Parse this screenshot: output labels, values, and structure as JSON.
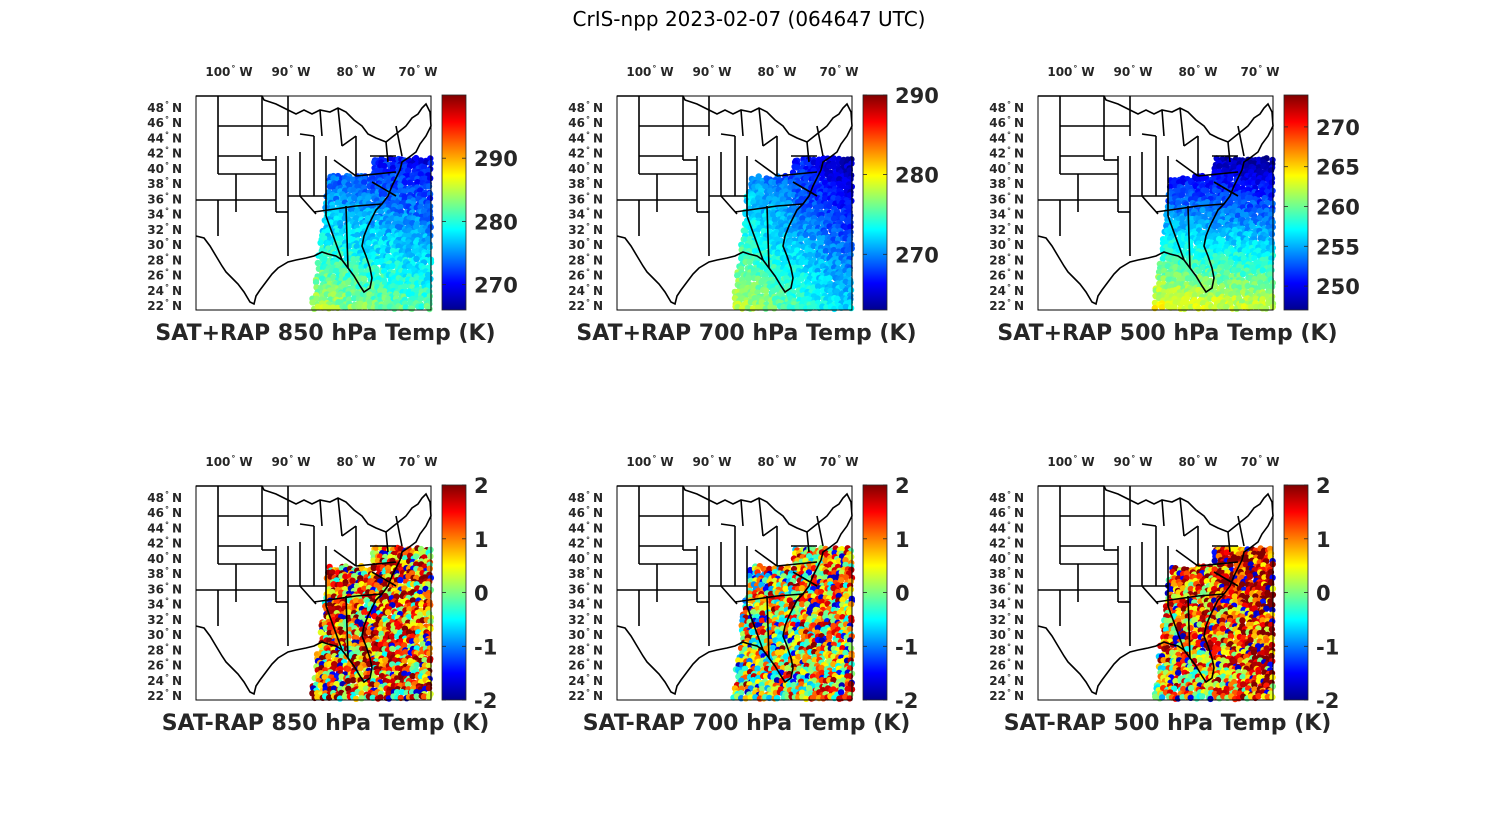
{
  "figure": {
    "title": "CrIS-npp 2023-02-07 (064647 UTC)",
    "colormap": "jet",
    "lon_labels": [
      "100",
      "90",
      "80",
      "70"
    ],
    "lon_suffix": "W",
    "lat_labels": [
      "48",
      "46",
      "44",
      "42",
      "40",
      "38",
      "36",
      "34",
      "32",
      "30",
      "28",
      "26",
      "24",
      "22"
    ],
    "lat_suffix": "N",
    "degree_symbol": "°"
  },
  "panels": [
    {
      "title": "SAT+RAP 850 hPa Temp (K)",
      "colorbar": {
        "min": 266,
        "max": 300,
        "ticks": [
          "290",
          "280",
          "270"
        ],
        "tick_values": [
          290,
          280,
          270
        ]
      },
      "field": {
        "base": 0.55,
        "north_grad": -0.35,
        "east_grad": -0.1,
        "ocean_cold": 0.0,
        "noise": 0.06
      }
    },
    {
      "title": "SAT+RAP 700 hPa Temp (K)",
      "colorbar": {
        "min": 263,
        "max": 290,
        "ticks": [
          "290",
          "280",
          "270"
        ],
        "tick_values": [
          290,
          280,
          270
        ]
      },
      "field": {
        "base": 0.58,
        "north_grad": -0.3,
        "east_grad": -0.25,
        "ocean_cold": 0.0,
        "noise": 0.05
      }
    },
    {
      "title": "SAT+RAP 500 hPa Temp (K)",
      "colorbar": {
        "min": 247,
        "max": 274,
        "ticks": [
          "270",
          "265",
          "260",
          "255",
          "250"
        ],
        "tick_values": [
          270,
          265,
          260,
          255,
          250
        ]
      },
      "field": {
        "base": 0.62,
        "north_grad": -0.55,
        "east_grad": -0.05,
        "ocean_cold": 0.0,
        "noise": 0.05
      }
    },
    {
      "title": "SAT-RAP 850 hPa Temp (K)",
      "colorbar": {
        "min": -2,
        "max": 2,
        "ticks": [
          "2",
          "1",
          "0",
          "-1",
          "-2"
        ],
        "tick_values": [
          2,
          1,
          0,
          -1,
          -2
        ]
      },
      "field": {
        "base": 0.72,
        "north_grad": 0.0,
        "east_grad": 0.0,
        "ocean_cold": 0.0,
        "noise": 0.35
      }
    },
    {
      "title": "SAT-RAP 700 hPa Temp (K)",
      "colorbar": {
        "min": -2,
        "max": 2,
        "ticks": [
          "2",
          "1",
          "0",
          "-1",
          "-2"
        ],
        "tick_values": [
          2,
          1,
          0,
          -1,
          -2
        ]
      },
      "field": {
        "base": 0.52,
        "north_grad": 0.0,
        "east_grad": 0.15,
        "ocean_cold": 0.0,
        "noise": 0.3
      }
    },
    {
      "title": "SAT-RAP 500 hPa Temp (K)",
      "colorbar": {
        "min": -2,
        "max": 2,
        "ticks": [
          "2",
          "1",
          "0",
          "-1",
          "-2"
        ],
        "tick_values": [
          2,
          1,
          0,
          -1,
          -2
        ]
      },
      "field": {
        "base": 0.55,
        "north_grad": 0.2,
        "east_grad": 0.2,
        "ocean_cold": 0.0,
        "noise": 0.3
      }
    }
  ]
}
